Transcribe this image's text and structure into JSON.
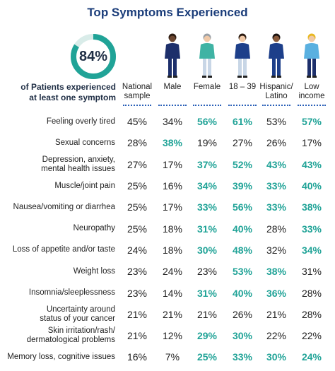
{
  "title": "Top Symptoms Experienced",
  "donut": {
    "value_label": "84%",
    "fraction": 0.84,
    "color": "#20a397",
    "track": "#d9ece9"
  },
  "subtitle_line1": "of Patients experienced",
  "subtitle_line2": "at least one symptom",
  "columns": [
    {
      "line1": "National",
      "line2": "sample",
      "icon": "none"
    },
    {
      "line1": "Male",
      "line2": "",
      "icon": "man-figure-icon"
    },
    {
      "line1": "Female",
      "line2": "",
      "icon": "woman-figure-icon"
    },
    {
      "line1": "18 – 39",
      "line2": "",
      "icon": "young-adult-figure-icon"
    },
    {
      "line1": "Hispanic/",
      "line2": "Latino",
      "icon": "hispanic-figure-icon"
    },
    {
      "line1": "Low",
      "line2": "income",
      "icon": "low-income-figure-icon"
    }
  ],
  "highlight_color": "#20a397",
  "rows": [
    {
      "label1": "Feeling overly tired",
      "label2": "",
      "values": [
        "45%",
        "34%",
        "56%",
        "61%",
        "53%",
        "57%"
      ],
      "hl": [
        false,
        false,
        true,
        true,
        false,
        true
      ]
    },
    {
      "label1": "Sexual concerns",
      "label2": "",
      "values": [
        "28%",
        "38%",
        "19%",
        "27%",
        "26%",
        "17%"
      ],
      "hl": [
        false,
        true,
        false,
        false,
        false,
        false
      ]
    },
    {
      "label1": "Depression, anxiety,",
      "label2": "mental health issues",
      "values": [
        "27%",
        "17%",
        "37%",
        "52%",
        "43%",
        "43%"
      ],
      "hl": [
        false,
        false,
        true,
        true,
        true,
        true
      ]
    },
    {
      "label1": "Muscle/joint pain",
      "label2": "",
      "values": [
        "25%",
        "16%",
        "34%",
        "39%",
        "33%",
        "40%"
      ],
      "hl": [
        false,
        false,
        true,
        true,
        true,
        true
      ]
    },
    {
      "label1": "Nausea/vomiting or diarrhea",
      "label2": "",
      "values": [
        "25%",
        "17%",
        "33%",
        "56%",
        "33%",
        "38%"
      ],
      "hl": [
        false,
        false,
        true,
        true,
        true,
        true
      ]
    },
    {
      "label1": "Neuropathy",
      "label2": "",
      "values": [
        "25%",
        "18%",
        "31%",
        "40%",
        "28%",
        "33%"
      ],
      "hl": [
        false,
        false,
        true,
        true,
        false,
        true
      ]
    },
    {
      "label1": "Loss of appetite and/or taste",
      "label2": "",
      "values": [
        "24%",
        "18%",
        "30%",
        "48%",
        "32%",
        "34%"
      ],
      "hl": [
        false,
        false,
        true,
        true,
        false,
        true
      ]
    },
    {
      "label1": "Weight loss",
      "label2": "",
      "values": [
        "23%",
        "24%",
        "23%",
        "53%",
        "38%",
        "31%"
      ],
      "hl": [
        false,
        false,
        false,
        true,
        true,
        false
      ]
    },
    {
      "label1": "Insomnia/sleeplessness",
      "label2": "",
      "values": [
        "23%",
        "14%",
        "31%",
        "40%",
        "36%",
        "28%"
      ],
      "hl": [
        false,
        false,
        true,
        true,
        true,
        false
      ]
    },
    {
      "label1": "Uncertainty around",
      "label2": "status of your cancer",
      "values": [
        "21%",
        "21%",
        "21%",
        "26%",
        "21%",
        "28%"
      ],
      "hl": [
        false,
        false,
        false,
        false,
        false,
        false
      ]
    },
    {
      "label1": "Skin irritation/rash/",
      "label2": "dermatological problems",
      "values": [
        "21%",
        "12%",
        "29%",
        "30%",
        "22%",
        "22%"
      ],
      "hl": [
        false,
        false,
        true,
        true,
        false,
        false
      ]
    },
    {
      "label1": "Memory loss, cognitive issues",
      "label2": "",
      "values": [
        "16%",
        "7%",
        "25%",
        "33%",
        "30%",
        "24%"
      ],
      "hl": [
        false,
        false,
        true,
        true,
        true,
        true
      ]
    }
  ]
}
